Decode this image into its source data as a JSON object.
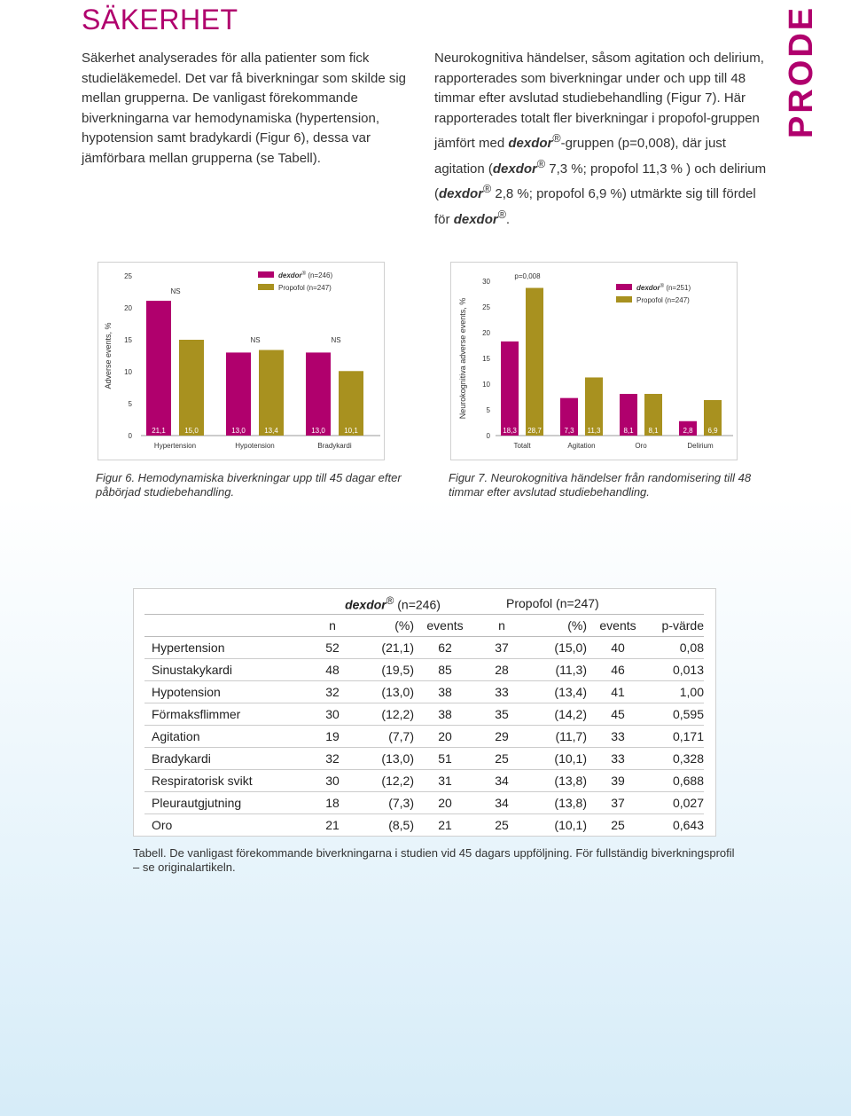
{
  "title": "SÄKERHET",
  "brand": "PRODEX",
  "brand_color": "#b0006d",
  "paragraph_left": "Säkerhet analyserades för alla patienter som fick studieläkemedel. Det var få biverkningar som skilde sig mellan grupperna. De vanligast förekommande biverkningarna var hemodynamiska (hypertension, hypotension samt bradykardi (Figur 6), dessa var jämförbara mellan grupperna (se Tabell).",
  "paragraph_right": {
    "p1": "Neurokognitiva händelser, såsom agitation och delirium, rapporterades som biverkningar under och upp till 48 timmar efter avslutad studiebehandling (Figur 7). Här rapporterades totalt fler biverkningar i propofol-gruppen jämfört med ",
    "drug": "dexdor",
    "reg": "®",
    "p2": "-gruppen (p=0,008), där just agitation (",
    "p3": " 7,3 %; propofol 11,3 % ) och delirium (",
    "p4": " 2,8 %; propofol 6,9 %) utmärkte sig till fördel för ",
    "p5": "."
  },
  "colors": {
    "dexdor": "#b0006d",
    "propofol": "#a8911f"
  },
  "chart_data": [
    {
      "type": "bar",
      "ylabel": "Adverse events, %",
      "ylim": [
        0,
        25
      ],
      "yticks": [
        "0",
        "5",
        "10",
        "15",
        "20",
        "25"
      ],
      "categories": [
        "Hypertension",
        "Hypotension",
        "Bradykardi"
      ],
      "series": [
        {
          "name": "(n=246)",
          "name_drug": "dexdor",
          "values": [
            21.1,
            13.0,
            13.0
          ],
          "labels": [
            "21,1",
            "13,0",
            "13,0"
          ]
        },
        {
          "name": "Propofol (n=247)",
          "values": [
            15.0,
            13.4,
            10.1
          ],
          "labels": [
            "15,0",
            "13,4",
            "10,1"
          ]
        }
      ],
      "annotations": [
        "NS",
        "NS",
        "NS"
      ]
    },
    {
      "type": "bar",
      "ylabel": "Neurokognitiva adverse events, %",
      "ylim": [
        0,
        30
      ],
      "yticks": [
        "0",
        "5",
        "10",
        "15",
        "20",
        "25",
        "30"
      ],
      "categories": [
        "Totalt",
        "Agitation",
        "Oro",
        "Delirium"
      ],
      "series": [
        {
          "name": "(n=251)",
          "name_drug": "dexdor",
          "values": [
            18.3,
            7.3,
            8.1,
            2.8
          ],
          "labels": [
            "18,3",
            "7,3",
            "8,1",
            "2,8"
          ]
        },
        {
          "name": "Propofol (n=247)",
          "values": [
            28.7,
            11.3,
            8.1,
            6.9
          ],
          "labels": [
            "28,7",
            "11,3",
            "8,1",
            "6,9"
          ]
        }
      ],
      "annotations": [
        "p=0,008"
      ]
    }
  ],
  "fig6_caption": "Figur 6. Hemodynamiska biverkningar upp till 45 dagar efter påbörjad studiebehandling.",
  "fig7_caption": "Figur 7. Neurokognitiva händelser från randomisering till 48 timmar efter avslutad studiebehandling.",
  "table": {
    "group1": {
      "drug": "dexdor",
      "reg": "®",
      "text": " (n=246)"
    },
    "group2": "Propofol (n=247)",
    "columns": [
      "n",
      "(%)",
      "events",
      "n",
      "(%)",
      "events",
      "p-värde"
    ],
    "rows": [
      [
        "Hypertension",
        "52",
        "(21,1)",
        "62",
        "37",
        "(15,0)",
        "40",
        "0,08"
      ],
      [
        "Sinustakykardi",
        "48",
        "(19,5)",
        "85",
        "28",
        "(11,3)",
        "46",
        "0,013"
      ],
      [
        "Hypotension",
        "32",
        "(13,0)",
        "38",
        "33",
        "(13,4)",
        "41",
        "1,00"
      ],
      [
        "Förmaksflimmer",
        "30",
        "(12,2)",
        "38",
        "35",
        "(14,2)",
        "45",
        "0,595"
      ],
      [
        "Agitation",
        "19",
        "(7,7)",
        "20",
        "29",
        "(11,7)",
        "33",
        "0,171"
      ],
      [
        "Bradykardi",
        "32",
        "(13,0)",
        "51",
        "25",
        "(10,1)",
        "33",
        "0,328"
      ],
      [
        "Respiratorisk svikt",
        "30",
        "(12,2)",
        "31",
        "34",
        "(13,8)",
        "39",
        "0,688"
      ],
      [
        "Pleurautgjutning",
        "18",
        "(7,3)",
        "20",
        "34",
        "(13,8)",
        "37",
        "0,027"
      ],
      [
        "Oro",
        "21",
        "(8,5)",
        "21",
        "25",
        "(10,1)",
        "25",
        "0,643"
      ]
    ]
  },
  "table_caption": "Tabell. De vanligast förekommande biverkningarna i studien vid 45 dagars uppföljning. För fullständig biverkningsprofil – se originalartikeln."
}
